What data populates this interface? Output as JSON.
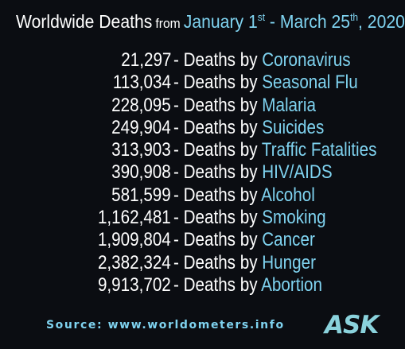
{
  "title": {
    "main": "Worldwide Deaths",
    "from": "from",
    "range_start": "January 1",
    "range_start_suffix": "st",
    "range_sep": " - March 25",
    "range_end_suffix": "th",
    "range_year": ", 2020"
  },
  "rows": [
    {
      "count": "21,297",
      "phrase": "- Deaths by",
      "cause": "Coronavirus"
    },
    {
      "count": "113,034",
      "phrase": "- Deaths by",
      "cause": "Seasonal Flu"
    },
    {
      "count": "228,095",
      "phrase": "- Deaths by",
      "cause": "Malaria"
    },
    {
      "count": "249,904",
      "phrase": "- Deaths by",
      "cause": "Suicides"
    },
    {
      "count": "313,903",
      "phrase": "- Deaths by",
      "cause": "Traffic Fatalities"
    },
    {
      "count": "390,908",
      "phrase": "- Deaths by",
      "cause": "HIV/AIDS"
    },
    {
      "count": "581,599",
      "phrase": "- Deaths by",
      "cause": "Alcohol"
    },
    {
      "count": "1,162,481",
      "phrase": "- Deaths by",
      "cause": "Smoking"
    },
    {
      "count": "1,909,804",
      "phrase": "- Deaths by",
      "cause": "Cancer"
    },
    {
      "count": "2,382,324",
      "phrase": "- Deaths by",
      "cause": "Hunger"
    },
    {
      "count": "9,913,702",
      "phrase": "- Deaths by",
      "cause": "Abortion"
    }
  ],
  "source": "Source: www.worldometers.info",
  "logo": "ASK",
  "colors": {
    "background": "#0b0d12",
    "text": "#ffffff",
    "accent": "#7fd3f0"
  }
}
